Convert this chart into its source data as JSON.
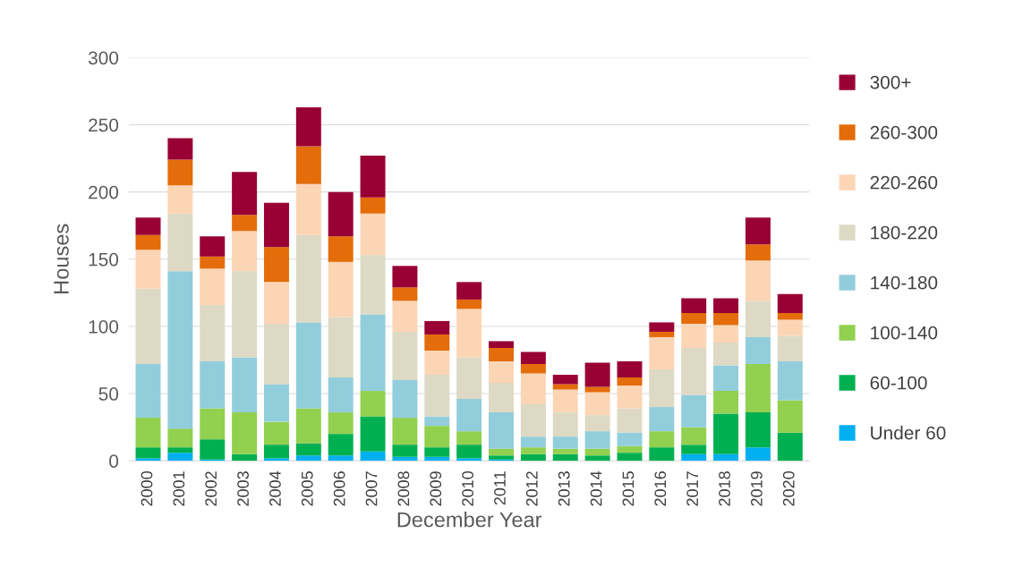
{
  "chart_data": {
    "type": "bar",
    "stacked": true,
    "xlabel": "December Year",
    "ylabel": "Houses",
    "categories": [
      "2000",
      "2001",
      "2002",
      "2003",
      "2004",
      "2005",
      "2006",
      "2007",
      "2008",
      "2009",
      "2010",
      "2011",
      "2012",
      "2013",
      "2014",
      "2015",
      "2016",
      "2017",
      "2018",
      "2019",
      "2020"
    ],
    "ylim": [
      0,
      300
    ],
    "yticks": [
      0,
      50,
      100,
      150,
      200,
      250,
      300
    ],
    "grid": "y",
    "legend": "right",
    "series": [
      {
        "name": "Under 60",
        "color": "#00b0f0",
        "values": [
          2,
          6,
          1,
          0,
          2,
          4,
          4,
          7,
          3,
          3,
          2,
          1,
          0,
          0,
          0,
          0,
          0,
          5,
          5,
          10,
          0
        ]
      },
      {
        "name": "60-100",
        "color": "#00b050",
        "values": [
          8,
          4,
          15,
          5,
          10,
          9,
          16,
          26,
          9,
          7,
          10,
          3,
          5,
          5,
          4,
          6,
          10,
          7,
          30,
          26,
          21
        ]
      },
      {
        "name": "100-140",
        "color": "#92d050",
        "values": [
          22,
          14,
          23,
          31,
          17,
          26,
          16,
          19,
          20,
          16,
          10,
          5,
          5,
          4,
          5,
          5,
          12,
          13,
          17,
          36,
          24
        ]
      },
      {
        "name": "140-180",
        "color": "#92cddc",
        "values": [
          40,
          117,
          35,
          41,
          28,
          64,
          26,
          57,
          28,
          7,
          24,
          27,
          8,
          9,
          13,
          10,
          18,
          24,
          19,
          20,
          29
        ]
      },
      {
        "name": "180-220",
        "color": "#ddd9c4",
        "values": [
          56,
          43,
          42,
          64,
          45,
          65,
          45,
          44,
          36,
          31,
          31,
          22,
          24,
          18,
          12,
          18,
          28,
          35,
          17,
          27,
          19
        ]
      },
      {
        "name": "220-260",
        "color": "#fcd5b5",
        "values": [
          29,
          21,
          27,
          30,
          31,
          38,
          41,
          31,
          23,
          18,
          36,
          16,
          23,
          17,
          17,
          17,
          24,
          18,
          13,
          30,
          12
        ]
      },
      {
        "name": "260-300",
        "color": "#e46c0a",
        "values": [
          11,
          19,
          9,
          12,
          26,
          28,
          19,
          12,
          10,
          12,
          7,
          10,
          7,
          4,
          4,
          6,
          4,
          8,
          9,
          12,
          5
        ]
      },
      {
        "name": "300+",
        "color": "#990033",
        "values": [
          13,
          16,
          15,
          32,
          33,
          29,
          33,
          31,
          16,
          10,
          13,
          5,
          9,
          7,
          18,
          12,
          7,
          11,
          11,
          20,
          14
        ]
      }
    ]
  }
}
